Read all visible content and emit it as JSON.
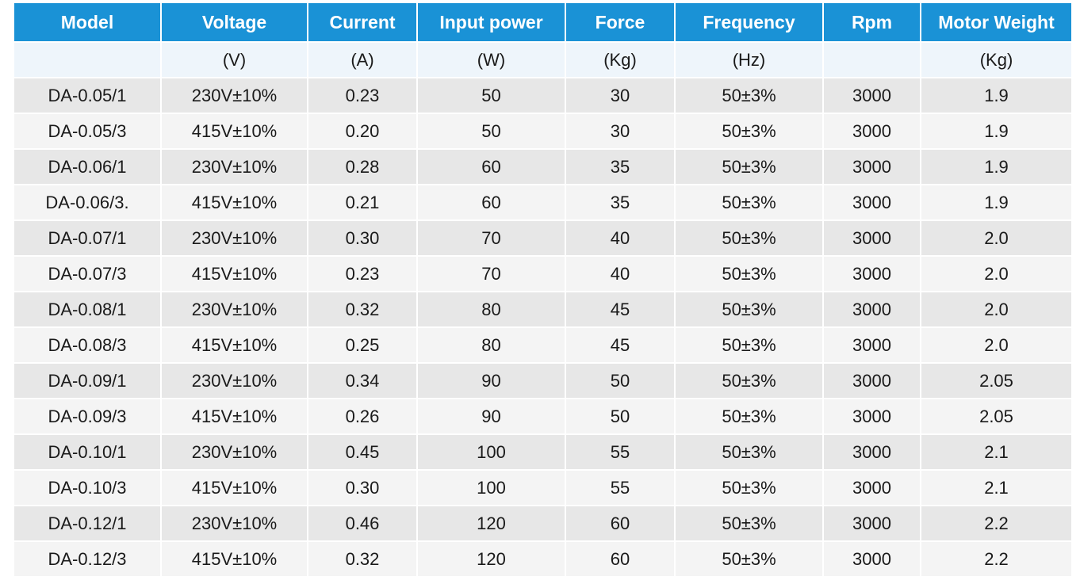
{
  "table": {
    "headers": [
      "Model",
      "Voltage",
      "Current",
      "Input power",
      "Force",
      "Frequency",
      "Rpm",
      "Motor Weight"
    ],
    "units": [
      "",
      "(V)",
      "(A)",
      "(W)",
      "(Kg)",
      "(Hz)",
      "",
      "(Kg)"
    ],
    "rows": [
      [
        "DA-0.05/1",
        "230V±10%",
        "0.23",
        "50",
        "30",
        "50±3%",
        "3000",
        "1.9"
      ],
      [
        "DA-0.05/3",
        "415V±10%",
        "0.20",
        "50",
        "30",
        "50±3%",
        "3000",
        "1.9"
      ],
      [
        "DA-0.06/1",
        "230V±10%",
        "0.28",
        "60",
        "35",
        "50±3%",
        "3000",
        "1.9"
      ],
      [
        "DA-0.06/3.",
        "415V±10%",
        "0.21",
        "60",
        "35",
        "50±3%",
        "3000",
        "1.9"
      ],
      [
        "DA-0.07/1",
        "230V±10%",
        "0.30",
        "70",
        "40",
        "50±3%",
        "3000",
        "2.0"
      ],
      [
        "DA-0.07/3",
        "415V±10%",
        "0.23",
        "70",
        "40",
        "50±3%",
        "3000",
        "2.0"
      ],
      [
        "DA-0.08/1",
        "230V±10%",
        "0.32",
        "80",
        "45",
        "50±3%",
        "3000",
        "2.0"
      ],
      [
        "DA-0.08/3",
        "415V±10%",
        "0.25",
        "80",
        "45",
        "50±3%",
        "3000",
        "2.0"
      ],
      [
        "DA-0.09/1",
        "230V±10%",
        "0.34",
        "90",
        "50",
        "50±3%",
        "3000",
        "2.05"
      ],
      [
        "DA-0.09/3",
        "415V±10%",
        "0.26",
        "90",
        "50",
        "50±3%",
        "3000",
        "2.05"
      ],
      [
        "DA-0.10/1",
        "230V±10%",
        "0.45",
        "100",
        "55",
        "50±3%",
        "3000",
        "2.1"
      ],
      [
        "DA-0.10/3",
        "415V±10%",
        "0.30",
        "100",
        "55",
        "50±3%",
        "3000",
        "2.1"
      ],
      [
        "DA-0.12/1",
        "230V±10%",
        "0.46",
        "120",
        "60",
        "50±3%",
        "3000",
        "2.2"
      ],
      [
        "DA-0.12/3",
        "415V±10%",
        "0.32",
        "120",
        "60",
        "50±3%",
        "3000",
        "2.2"
      ]
    ]
  },
  "colors": {
    "header_bg": "#1a92d6",
    "units_bg": "#eef5fb",
    "row_odd_bg": "#e7e7e7",
    "row_even_bg": "#f4f4f4"
  }
}
